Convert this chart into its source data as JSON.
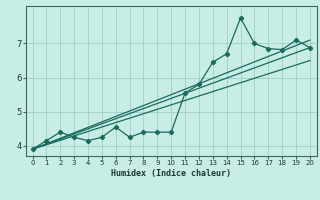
{
  "title": "",
  "xlabel": "Humidex (Indice chaleur)",
  "ylabel": "",
  "bg_color": "#c8ece6",
  "plot_bg_color": "#c8ece6",
  "line_color": "#1a6b5a",
  "grid_color": "#b0ddd6",
  "xlim": [
    -0.5,
    20.5
  ],
  "ylim": [
    3.7,
    8.1
  ],
  "xticks": [
    0,
    1,
    2,
    3,
    4,
    5,
    6,
    7,
    8,
    9,
    10,
    11,
    12,
    13,
    14,
    15,
    16,
    17,
    18,
    19,
    20
  ],
  "yticks": [
    4,
    5,
    6,
    7
  ],
  "series1_x": [
    0,
    1,
    2,
    3,
    4,
    5,
    6,
    7,
    8,
    9,
    10,
    11,
    12,
    13,
    14,
    15,
    16,
    17,
    18,
    19,
    20
  ],
  "series1_y": [
    3.9,
    4.15,
    4.4,
    4.25,
    4.15,
    4.25,
    4.55,
    4.25,
    4.4,
    4.4,
    4.4,
    5.55,
    5.8,
    6.45,
    6.7,
    7.75,
    7.0,
    6.85,
    6.82,
    7.1,
    6.88
  ],
  "series2_x": [
    0,
    20
  ],
  "series2_y": [
    3.9,
    7.1
  ],
  "series3_x": [
    0,
    20
  ],
  "series3_y": [
    3.9,
    6.88
  ],
  "series4_x": [
    0,
    20
  ],
  "series4_y": [
    3.9,
    6.5
  ]
}
